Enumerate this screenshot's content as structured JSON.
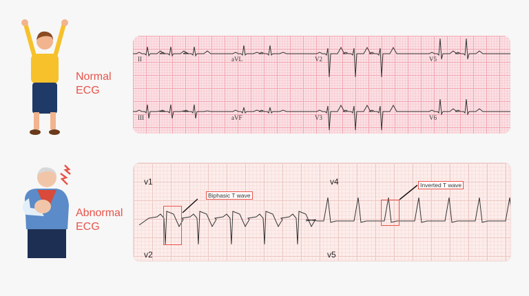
{
  "normal": {
    "caption_line1": "Normal",
    "caption_line2": "ECG",
    "leads_row1": [
      "II",
      "aVL",
      "V2",
      "V5"
    ],
    "leads_row2": [
      "III",
      "aVF",
      "V3",
      "V6"
    ]
  },
  "abnormal": {
    "caption_line1": "Abnormal",
    "caption_line2": "ECG",
    "leads": [
      "v1",
      "v2",
      "v4",
      "v5"
    ],
    "annotations": [
      "Biphasic T wave",
      "Inverted T wave"
    ]
  },
  "colors": {
    "accent": "#e8534a",
    "trace": "#333333",
    "grid_normal": "#f2a6b2",
    "grid_abnormal": "#ecc8c4"
  }
}
